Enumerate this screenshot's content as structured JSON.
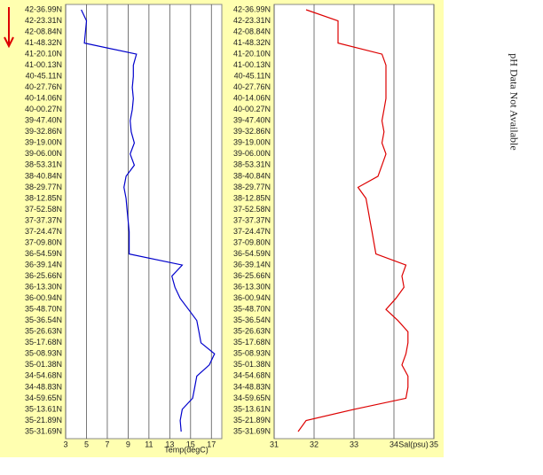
{
  "chart_data": [
    {
      "type": "line",
      "orientation": "horizontal",
      "xlabel": "Temp(degC)",
      "color": "#0000cc",
      "categories": [
        "42-36.99N",
        "42-23.31N",
        "42-08.84N",
        "41-48.32N",
        "41-20.10N",
        "41-00.13N",
        "40-45.11N",
        "40-27.76N",
        "40-14.06N",
        "40-00.27N",
        "39-47.40N",
        "39-32.86N",
        "39-19.00N",
        "39-06.00N",
        "38-53.31N",
        "38-40.84N",
        "38-29.77N",
        "38-12.85N",
        "37-52.58N",
        "37-37.37N",
        "37-24.47N",
        "37-09.80N",
        "36-54.59N",
        "36-39.14N",
        "36-25.66N",
        "36-13.30N",
        "36-00.94N",
        "35-48.70N",
        "35-36.54N",
        "35-26.63N",
        "35-17.68N",
        "35-08.93N",
        "35-01.38N",
        "34-54.68N",
        "34-48.83N",
        "34-59.65N",
        "35-13.61N",
        "35-21.89N",
        "35-31.69N"
      ],
      "values": [
        4.5,
        5.0,
        4.9,
        4.8,
        9.8,
        9.5,
        9.5,
        9.4,
        9.5,
        9.4,
        9.2,
        9.3,
        9.6,
        9.2,
        9.6,
        8.8,
        8.6,
        8.8,
        8.9,
        9.0,
        9.1,
        9.1,
        9.1,
        14.2,
        13.2,
        13.5,
        14.0,
        14.8,
        15.6,
        15.8,
        16.0,
        17.3,
        16.8,
        15.6,
        15.4,
        15.2,
        14.2,
        14.0,
        14.1
      ],
      "xlim": [
        3,
        18
      ],
      "xticks": [
        3,
        5,
        7,
        9,
        11,
        13,
        15,
        17
      ],
      "grid": true
    },
    {
      "type": "line",
      "orientation": "horizontal",
      "xlabel": "Sal(psu)",
      "color": "#dd0000",
      "categories": [
        "42-36.99N",
        "42-23.31N",
        "42-08.84N",
        "41-48.32N",
        "41-20.10N",
        "41-00.13N",
        "40-45.11N",
        "40-27.76N",
        "40-14.06N",
        "40-00.27N",
        "39-47.40N",
        "39-32.86N",
        "39-19.00N",
        "39-06.00N",
        "38-53.31N",
        "38-40.84N",
        "38-29.77N",
        "38-12.85N",
        "37-52.58N",
        "37-37.37N",
        "37-24.47N",
        "37-09.80N",
        "36-54.59N",
        "36-39.14N",
        "36-25.66N",
        "36-13.30N",
        "36-00.94N",
        "35-48.70N",
        "35-36.54N",
        "35-26.63N",
        "35-17.68N",
        "35-08.93N",
        "35-01.38N",
        "34-54.68N",
        "34-48.83N",
        "34-59.65N",
        "35-13.61N",
        "35-21.89N",
        "35-31.69N"
      ],
      "values": [
        31.8,
        32.6,
        32.6,
        32.6,
        33.7,
        33.8,
        33.8,
        33.8,
        33.8,
        33.75,
        33.7,
        33.75,
        33.7,
        33.8,
        33.7,
        33.6,
        33.1,
        33.3,
        33.35,
        33.4,
        33.45,
        33.5,
        33.55,
        34.3,
        34.2,
        34.25,
        34.05,
        33.8,
        34.1,
        34.35,
        34.35,
        34.3,
        34.2,
        34.35,
        34.35,
        34.3,
        33.0,
        31.8,
        31.6
      ],
      "xlim": [
        31,
        35
      ],
      "xticks": [
        31,
        32,
        33,
        34,
        35
      ],
      "grid": true
    }
  ],
  "annotation": "pH Data Not Available"
}
